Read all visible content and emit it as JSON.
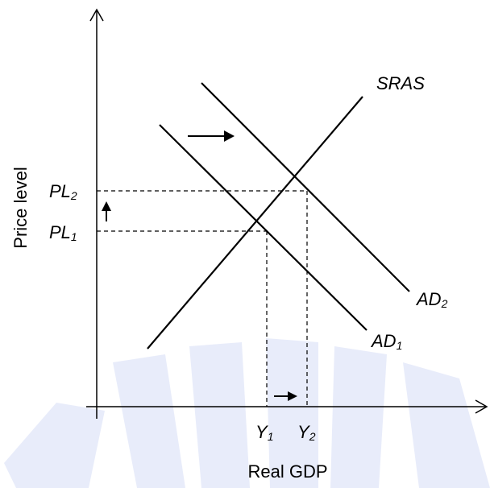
{
  "axes": {
    "x_title": "Real GDP",
    "y_title": "Price level"
  },
  "curves": {
    "sras": "SRAS",
    "ad1": {
      "main": "AD",
      "sub": "1"
    },
    "ad2": {
      "main": "AD",
      "sub": "2"
    }
  },
  "price_levels": {
    "pl1": {
      "main": "PL",
      "sub": "1"
    },
    "pl2": {
      "main": "PL",
      "sub": "2"
    }
  },
  "outputs": {
    "y1": {
      "main": "Y",
      "sub": "1"
    },
    "y2": {
      "main": "Y",
      "sub": "2"
    }
  },
  "watermark": "PILLIA",
  "colors": {
    "line": "#000000",
    "watermark": "#d6dcf5"
  }
}
